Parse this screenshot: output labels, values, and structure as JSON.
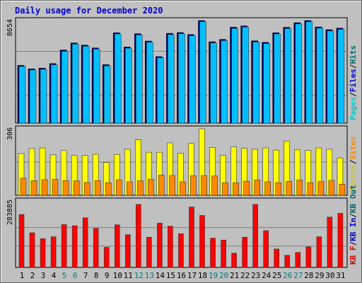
{
  "chart_data": {
    "type": "bar",
    "title": "Daily usage for December 2020",
    "categories": [
      "1",
      "2",
      "3",
      "4",
      "5",
      "6",
      "7",
      "8",
      "9",
      "10",
      "11",
      "12",
      "13",
      "14",
      "15",
      "16",
      "17",
      "18",
      "19",
      "20",
      "21",
      "22",
      "23",
      "24",
      "25",
      "26",
      "27",
      "28",
      "29",
      "30",
      "31"
    ],
    "weekend_days": [
      "5",
      "6",
      "12",
      "13",
      "19",
      "20",
      "26",
      "27"
    ],
    "panels": [
      {
        "id": "pages-files-hits",
        "max_label": "8654",
        "ymax": 8654,
        "legend": [
          {
            "label": "Pages",
            "color": "#00cccc"
          },
          {
            "label": "Files",
            "color": "#0000cc"
          },
          {
            "label": "Hits",
            "color": "#006666"
          }
        ],
        "series": [
          {
            "name": "Hits",
            "color": "#000066",
            "values": [
              4870,
              4580,
              4640,
              5020,
              6170,
              6760,
              6580,
              6340,
              4930,
              7620,
              6420,
              7540,
              6920,
              5610,
              7570,
              7640,
              7470,
              8650,
              6860,
              7060,
              8090,
              8200,
              6940,
              6810,
              7620,
              8080,
              8470,
              8650,
              8110,
              7880,
              8010
            ]
          },
          {
            "name": "Files",
            "color": "#00bfff",
            "values": [
              4780,
              4480,
              4540,
              4920,
              6060,
              6660,
              6480,
              6240,
              4830,
              7520,
              6320,
              7440,
              6820,
              5510,
              7470,
              7540,
              7370,
              8550,
              6760,
              6960,
              7990,
              8100,
              6840,
              6710,
              7520,
              7980,
              8370,
              8550,
              8010,
              7780,
              7910
            ]
          }
        ]
      },
      {
        "id": "visits-sites",
        "max_label": "306",
        "ymax": 306,
        "legend": [
          {
            "label": "Visits",
            "color": "#cccc00"
          },
          {
            "label": "Sites",
            "color": "#ff8800"
          }
        ],
        "series": [
          {
            "name": "Visits",
            "color": "#ffff00",
            "values": [
              192,
              215,
              218,
              186,
              206,
              183,
              183,
              189,
              151,
              188,
              212,
              255,
              198,
              198,
              241,
              194,
              238,
              306,
              220,
              184,
              223,
              216,
              212,
              218,
              208,
              250,
              209,
              206,
              218,
              212,
              172
            ]
          },
          {
            "name": "Sites",
            "color": "#ff8800",
            "values": [
              79,
              67,
              72,
              73,
              68,
              66,
              59,
              67,
              58,
              71,
              62,
              67,
              74,
              93,
              91,
              62,
              90,
              91,
              89,
              58,
              58,
              65,
              70,
              62,
              58,
              64,
              70,
              58,
              63,
              69,
              51
            ]
          }
        ]
      },
      {
        "id": "kb",
        "max_label": "283885",
        "ymax": 283885,
        "legend": [
          {
            "label": "KB F",
            "color": "#cc0000"
          },
          {
            "label": "KB In",
            "color": "#0000cc"
          },
          {
            "label": "KB Out",
            "color": "#006666"
          }
        ],
        "series": [
          {
            "name": "KB F",
            "color": "#ff0000",
            "values": [
              226000,
              148000,
              123000,
              131000,
              183000,
              178000,
              212000,
              167000,
              86000,
              182000,
              140000,
              269000,
              129000,
              189000,
              176000,
              144000,
              258000,
              222000,
              125000,
              117000,
              61000,
              129000,
              269000,
              157000,
              79000,
              52000,
              64000,
              88000,
              131000,
              215000,
              231000
            ]
          }
        ]
      }
    ]
  }
}
